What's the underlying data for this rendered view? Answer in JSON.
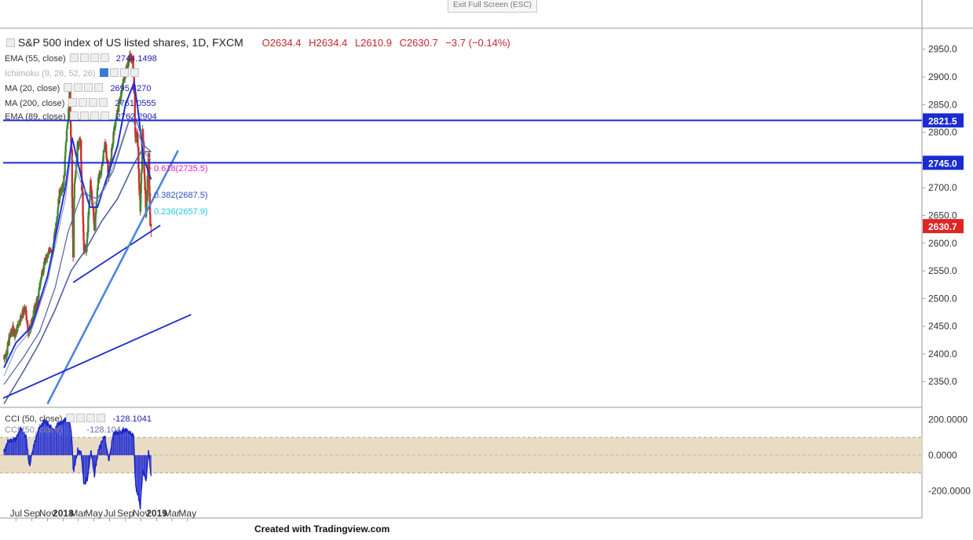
{
  "window": {
    "exit_fullscreen_label": "Exit Full Screen (ESC)"
  },
  "header": {
    "title": "S&P 500 index of US listed shares, 1D, FXCM",
    "ohlc": {
      "o": "O2634.4",
      "h": "H2634.4",
      "l": "L2610.9",
      "c": "C2630.7",
      "chg": "−3.7 (−0.14%)"
    }
  },
  "indicators": [
    {
      "name": "EMA (55, close)",
      "value": "2744.1498",
      "dim": false
    },
    {
      "name": "Ichimoku (9, 26, 52, 26)",
      "value": "",
      "dim": true
    },
    {
      "name": "MA (20, close)",
      "value": "2695.4270",
      "dim": false
    },
    {
      "name": "MA (200, close)",
      "value": "2761.0555",
      "dim": false
    },
    {
      "name": "EMA (89, close)",
      "value": "2762.2904",
      "dim": false
    }
  ],
  "cci": {
    "name": "CCI (50, close)",
    "value": "-128.1041",
    "name2": "CCI (50, close)",
    "value2": "-128.104"
  },
  "footer": "Created with Tradingview.com",
  "colors": {
    "up": "#3d8a37",
    "down": "#d22b2b",
    "ma_blue": "#1f2fd6",
    "ma_slate": "#5060a0",
    "ma_light": "#8890c0",
    "trend_light": "#4a86e0",
    "hline": "#1a2bd0",
    "fib618": "#e020c0",
    "fib382": "#3050c0",
    "fib236": "#20c8e0",
    "price_badge": "#e02424",
    "cci_band": "#e8dcc4",
    "cci_line": "#1a24c8"
  },
  "chart_data": [
    {
      "type": "candlestick",
      "title": "S&P 500 index of US listed shares, 1D, FXCM",
      "x_ticks": [
        "Jul",
        "Sep",
        "Nov",
        "2018",
        "Mar",
        "May",
        "Jul",
        "Sep",
        "Nov",
        "2019",
        "Mar",
        "May"
      ],
      "y_ticks": [
        "2350.0",
        "2400.0",
        "2450.0",
        "2500.0",
        "2550.0",
        "2600.0",
        "2650.0",
        "2700.0",
        "2750.0",
        "2800.0",
        "2850.0",
        "2900.0",
        "2950.0"
      ],
      "ylim": [
        2305,
        2985
      ],
      "price_path": [
        [
          "2017-05-15",
          2395
        ],
        [
          "2017-05-25",
          2400
        ],
        [
          "2017-06-05",
          2430
        ],
        [
          "2017-06-19",
          2445
        ],
        [
          "2017-06-29",
          2435
        ],
        [
          "2017-07-14",
          2460
        ],
        [
          "2017-07-28",
          2475
        ],
        [
          "2017-08-08",
          2480
        ],
        [
          "2017-08-18",
          2435
        ],
        [
          "2017-08-30",
          2455
        ],
        [
          "2017-09-11",
          2480
        ],
        [
          "2017-09-25",
          2500
        ],
        [
          "2017-10-09",
          2545
        ],
        [
          "2017-10-23",
          2565
        ],
        [
          "2017-11-06",
          2590
        ],
        [
          "2017-11-20",
          2580
        ],
        [
          "2017-12-04",
          2635
        ],
        [
          "2017-12-18",
          2690
        ],
        [
          "2018-01-02",
          2700
        ],
        [
          "2018-01-12",
          2780
        ],
        [
          "2018-01-26",
          2870
        ],
        [
          "2018-02-02",
          2765
        ],
        [
          "2018-02-09",
          2580
        ],
        [
          "2018-02-14",
          2700
        ],
        [
          "2018-02-27",
          2780
        ],
        [
          "2018-03-09",
          2785
        ],
        [
          "2018-03-23",
          2590
        ],
        [
          "2018-04-02",
          2590
        ],
        [
          "2018-04-18",
          2710
        ],
        [
          "2018-05-03",
          2625
        ],
        [
          "2018-05-18",
          2715
        ],
        [
          "2018-06-01",
          2735
        ],
        [
          "2018-06-13",
          2780
        ],
        [
          "2018-06-28",
          2720
        ],
        [
          "2018-07-16",
          2795
        ],
        [
          "2018-08-06",
          2850
        ],
        [
          "2018-08-28",
          2900
        ],
        [
          "2018-09-20",
          2940
        ],
        [
          "2018-10-03",
          2915
        ],
        [
          "2018-10-10",
          2785
        ],
        [
          "2018-10-17",
          2805
        ],
        [
          "2018-10-29",
          2650
        ],
        [
          "2018-11-07",
          2810
        ],
        [
          "2018-11-20",
          2650
        ],
        [
          "2018-11-30",
          2760
        ],
        [
          "2018-12-07",
          2635
        ]
      ],
      "candles_ohlc": [
        [
          "2018-12-10",
          2634.4,
          2634.4,
          2610.9,
          2630.7
        ]
      ],
      "ma_approx_paths": {
        "EMA (55, close)": [
          [
            "2017-05-15",
            2375
          ],
          [
            "2017-07-01",
            2420
          ],
          [
            "2017-09-01",
            2450
          ],
          [
            "2017-11-01",
            2540
          ],
          [
            "2018-01-10",
            2700
          ],
          [
            "2018-02-05",
            2790
          ],
          [
            "2018-03-15",
            2715
          ],
          [
            "2018-04-15",
            2665
          ],
          [
            "2018-05-15",
            2665
          ],
          [
            "2018-06-15",
            2710
          ],
          [
            "2018-08-01",
            2775
          ],
          [
            "2018-09-01",
            2850
          ],
          [
            "2018-10-05",
            2890
          ],
          [
            "2018-10-20",
            2840
          ],
          [
            "2018-11-10",
            2755
          ],
          [
            "2018-12-10",
            2715
          ]
        ],
        "MA (200, close)": [
          [
            "2017-05-15",
            2310
          ],
          [
            "2017-08-01",
            2370
          ],
          [
            "2017-10-01",
            2420
          ],
          [
            "2017-12-01",
            2480
          ],
          [
            "2018-02-01",
            2550
          ],
          [
            "2018-04-01",
            2590
          ],
          [
            "2018-06-01",
            2640
          ],
          [
            "2018-08-01",
            2680
          ],
          [
            "2018-10-01",
            2740
          ],
          [
            "2018-11-01",
            2765
          ],
          [
            "2018-12-10",
            2765
          ]
        ],
        "EMA (89, close)": [
          [
            "2017-05-15",
            2345
          ],
          [
            "2017-08-01",
            2395
          ],
          [
            "2017-10-01",
            2440
          ],
          [
            "2017-12-01",
            2520
          ],
          [
            "2018-01-20",
            2620
          ],
          [
            "2018-03-15",
            2690
          ],
          [
            "2018-05-15",
            2680
          ],
          [
            "2018-07-15",
            2730
          ],
          [
            "2018-09-15",
            2820
          ],
          [
            "2018-10-15",
            2820
          ],
          [
            "2018-11-15",
            2775
          ],
          [
            "2018-12-10",
            2765
          ]
        ],
        "MA (20, close)": [
          [
            "2017-05-15",
            2360
          ],
          [
            "2017-07-01",
            2410
          ],
          [
            "2017-09-01",
            2445
          ],
          [
            "2017-11-01",
            2530
          ],
          [
            "2018-01-10",
            2680
          ],
          [
            "2018-02-01",
            2760
          ],
          [
            "2018-03-15",
            2705
          ],
          [
            "2018-05-01",
            2670
          ],
          [
            "2018-06-15",
            2700
          ],
          [
            "2018-08-01",
            2760
          ],
          [
            "2018-09-20",
            2830
          ],
          [
            "2018-10-20",
            2800
          ],
          [
            "2018-11-20",
            2760
          ],
          [
            "2018-12-10",
            2750
          ]
        ]
      },
      "horizontal_levels": [
        {
          "label": "2821.5",
          "value": 2821.5
        },
        {
          "label": "2745.0",
          "value": 2745.0
        }
      ],
      "fib_levels": [
        {
          "label": "0.618(2735.5)",
          "value": 2735.5,
          "color_key": "fib618"
        },
        {
          "label": "0.382(2687.5)",
          "value": 2687.5,
          "color_key": "fib382"
        },
        {
          "label": "0.236(2657.9)",
          "value": 2657.9,
          "color_key": "fib236"
        }
      ],
      "trendlines": [
        {
          "from": [
            "2018-02-09",
            2529
          ],
          "to": [
            "2019-01-15",
            2632
          ],
          "style": "dark"
        },
        {
          "from": [
            "2017-11-01",
            2310
          ],
          "to": [
            "2019-03-25",
            2767
          ],
          "style": "light"
        },
        {
          "from": [
            "2017-05-01",
            2318
          ],
          "to": [
            "2019-05-15",
            2471
          ],
          "style": "dark"
        }
      ],
      "last_price": {
        "label": "2630.7",
        "value": 2630.7
      }
    },
    {
      "type": "line",
      "title": "CCI (50, close)",
      "y_ticks": [
        "200.0000",
        "0.0000",
        "-200.0000"
      ],
      "ylim": [
        -300,
        260
      ],
      "band": [
        -100,
        100
      ],
      "cci_path": [
        [
          "2017-05-15",
          20
        ],
        [
          "2017-06-01",
          80
        ],
        [
          "2017-07-01",
          90
        ],
        [
          "2017-07-20",
          150
        ],
        [
          "2017-08-10",
          100
        ],
        [
          "2017-08-22",
          -60
        ],
        [
          "2017-09-10",
          60
        ],
        [
          "2017-10-01",
          160
        ],
        [
          "2017-10-20",
          190
        ],
        [
          "2017-11-10",
          170
        ],
        [
          "2017-11-25",
          130
        ],
        [
          "2017-12-10",
          170
        ],
        [
          "2018-01-10",
          200
        ],
        [
          "2018-01-26",
          190
        ],
        [
          "2018-02-05",
          80
        ],
        [
          "2018-02-10",
          -100
        ],
        [
          "2018-02-27",
          30
        ],
        [
          "2018-03-12",
          20
        ],
        [
          "2018-03-23",
          -170
        ],
        [
          "2018-04-05",
          -130
        ],
        [
          "2018-04-20",
          20
        ],
        [
          "2018-05-03",
          -110
        ],
        [
          "2018-05-20",
          40
        ],
        [
          "2018-06-13",
          110
        ],
        [
          "2018-06-28",
          -30
        ],
        [
          "2018-07-16",
          120
        ],
        [
          "2018-08-10",
          130
        ],
        [
          "2018-08-29",
          140
        ],
        [
          "2018-09-20",
          130
        ],
        [
          "2018-10-03",
          100
        ],
        [
          "2018-10-11",
          -180
        ],
        [
          "2018-10-20",
          -220
        ],
        [
          "2018-10-29",
          -290
        ],
        [
          "2018-11-08",
          -80
        ],
        [
          "2018-11-20",
          -150
        ],
        [
          "2018-12-01",
          30
        ],
        [
          "2018-12-10",
          -128
        ]
      ]
    }
  ]
}
